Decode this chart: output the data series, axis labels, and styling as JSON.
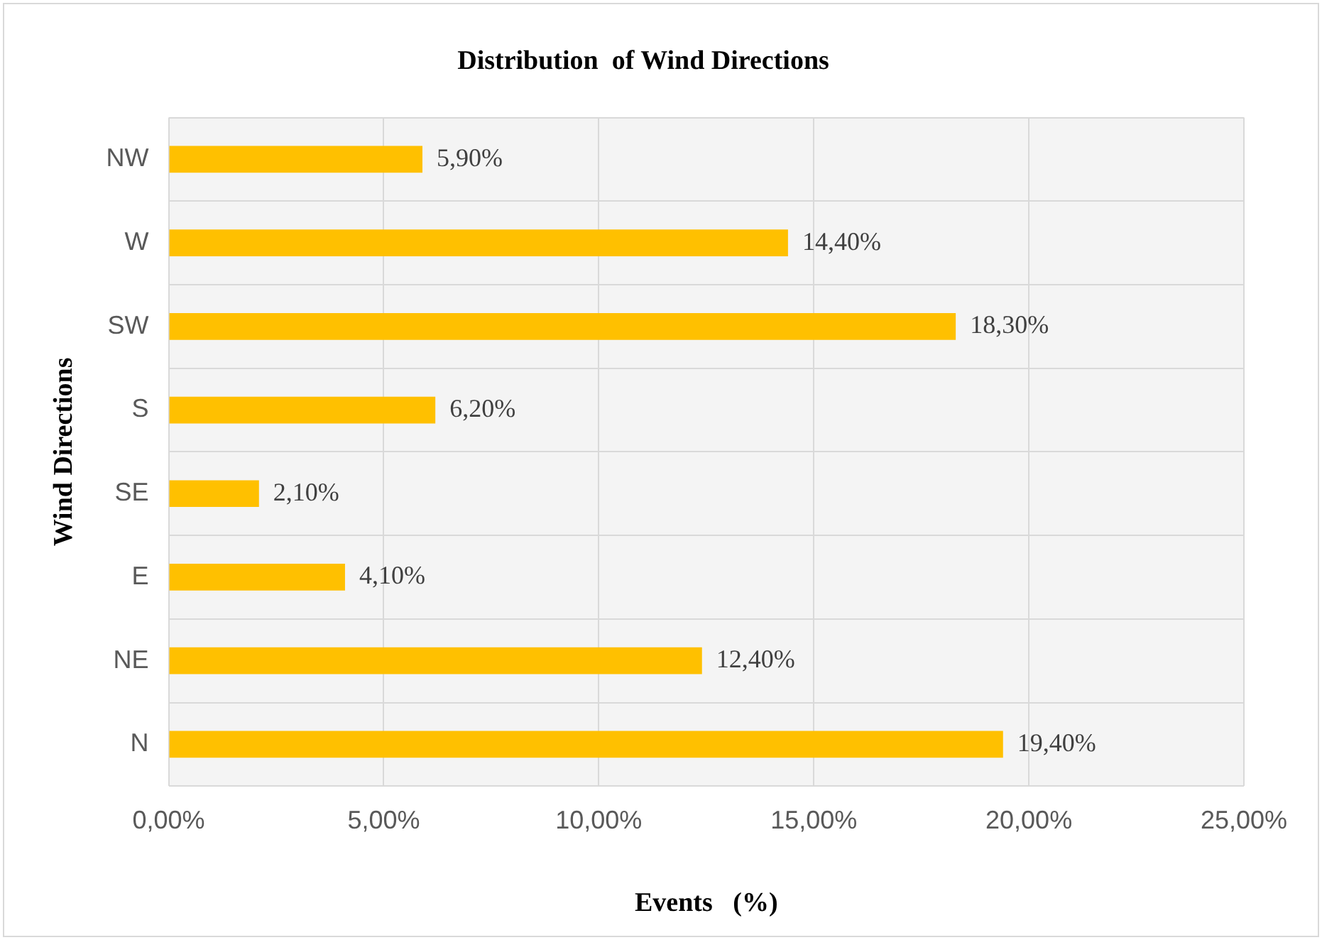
{
  "chart_data": {
    "type": "bar",
    "orientation": "horizontal",
    "title": "Distribution  of Wind Directions",
    "xlabel": "Events   (%)",
    "ylabel": "Wind Directions",
    "categories": [
      "NW",
      "W",
      "SW",
      "S",
      "SE",
      "E",
      "NE",
      "N"
    ],
    "values": [
      5.9,
      14.4,
      18.3,
      6.2,
      2.1,
      4.1,
      12.4,
      19.4
    ],
    "value_labels": [
      "5,90%",
      "14,40%",
      "18,30%",
      "6,20%",
      "2,10%",
      "4,10%",
      "12,40%",
      "19,40%"
    ],
    "color": "#ffc000",
    "xlim": [
      0,
      25
    ],
    "xticks": [
      {
        "value": 0,
        "label": "0,00%"
      },
      {
        "value": 5,
        "label": "5,00%"
      },
      {
        "value": 10,
        "label": "10,00%"
      },
      {
        "value": 15,
        "label": "15,00%"
      },
      {
        "value": 20,
        "label": "20,00%"
      },
      {
        "value": 25,
        "label": "25,00%"
      }
    ],
    "grid": true,
    "legend": false
  }
}
